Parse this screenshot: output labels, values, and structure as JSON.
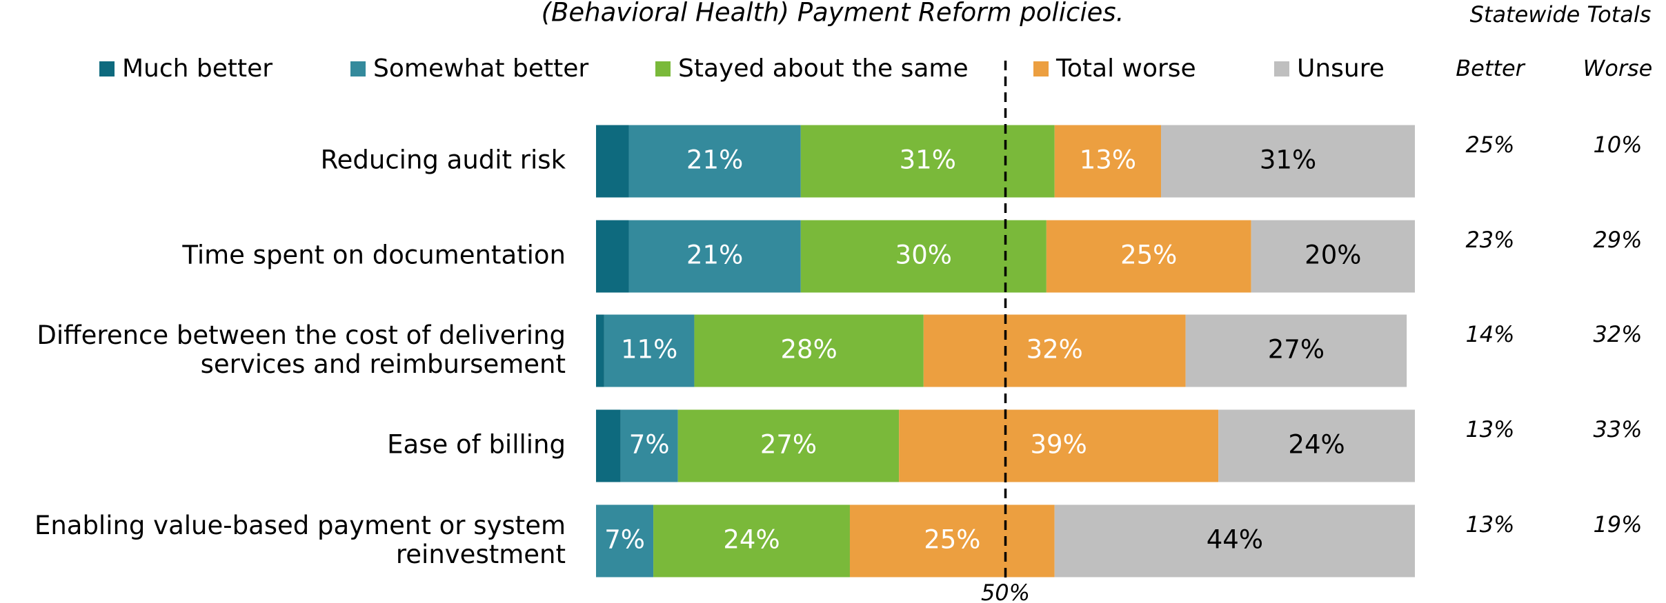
{
  "chart_data": {
    "type": "stacked_bar_horizontal",
    "title": "(Behavioral Health) Payment Reform policies.",
    "categories": [
      "Reducing audit risk",
      "Time spent on documentation",
      "Difference between the cost of delivering services and reimbursement",
      "Ease of billing",
      "Enabling value-based payment or system reinvestment"
    ],
    "xlim": [
      0,
      100
    ],
    "series": [
      {
        "name": "Much better",
        "color": "#0e6a7e",
        "label_color": "#ffffff",
        "values": [
          4,
          4,
          1,
          3,
          0
        ]
      },
      {
        "name": "Somewhat better",
        "color": "#348a9c",
        "label_color": "#ffffff",
        "values": [
          21,
          21,
          11,
          7,
          7
        ],
        "value_labels": [
          "21%",
          "21%",
          "11%",
          "7%",
          "7%"
        ]
      },
      {
        "name": "Stayed about the same",
        "color": "#7ab93a",
        "label_color": "#ffffff",
        "values": [
          31,
          30,
          28,
          27,
          24
        ],
        "value_labels": [
          "31%",
          "30%",
          "28%",
          "27%",
          "24%"
        ]
      },
      {
        "name": "Total worse",
        "color": "#ec9f40",
        "label_color": "#ffffff",
        "values": [
          13,
          25,
          32,
          39,
          25
        ],
        "value_labels": [
          "13%",
          "25%",
          "32%",
          "39%",
          "25%"
        ]
      },
      {
        "name": "Unsure",
        "color": "#bfbfbf",
        "label_color": "#000000",
        "values": [
          31,
          20,
          27,
          24,
          44
        ],
        "value_labels": [
          "31%",
          "20%",
          "27%",
          "24%",
          "44%"
        ]
      }
    ],
    "reference_line": {
      "value": 50,
      "label": "50%"
    },
    "statewide_totals": {
      "title": "Statewide Totals",
      "columns": [
        {
          "name": "Better",
          "values": [
            "25%",
            "23%",
            "14%",
            "13%",
            "13%"
          ]
        },
        {
          "name": "Worse",
          "values": [
            "10%",
            "29%",
            "32%",
            "33%",
            "19%"
          ]
        }
      ]
    }
  }
}
